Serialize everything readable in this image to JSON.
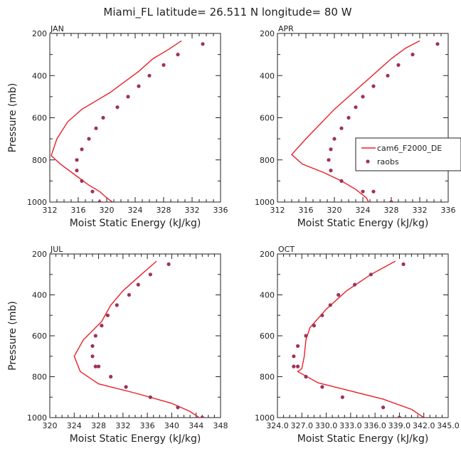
{
  "title": "Miami_FL  latitude= 26.511 N longitude= 80 W",
  "colors": {
    "model": "#e8202a",
    "obs": "#a0325a",
    "axis": "#222222"
  },
  "legend": {
    "model_label": "cam6_F2000_DE",
    "obs_label": "raobs"
  },
  "chart_data": [
    {
      "type": "line",
      "panel": "JAN",
      "xlabel": "Moist Static Energy (kJ/kg)",
      "ylabel": "Pressure (mb)",
      "xlim": [
        312,
        336
      ],
      "ylim": [
        1000,
        200
      ],
      "xticks": [
        "312",
        "316",
        "320",
        "324",
        "328",
        "332",
        "336"
      ],
      "yticks": [
        "200",
        "400",
        "600",
        "800",
        "1000"
      ],
      "series": [
        {
          "name": "cam6_F2000_DE",
          "kind": "line",
          "x": [
            330.5,
            328.5,
            326.5,
            324.5,
            322.5,
            320.5,
            318.5,
            316.5,
            314.5,
            313.0,
            312.2,
            313.5,
            315.5,
            317.5,
            319.0,
            320.0,
            320.8
          ],
          "y": [
            235,
            280,
            320,
            380,
            430,
            480,
            520,
            560,
            620,
            700,
            780,
            820,
            870,
            920,
            950,
            980,
            1000
          ]
        },
        {
          "name": "raobs",
          "kind": "scatter",
          "x": [
            333.5,
            330.0,
            328.0,
            326.0,
            324.5,
            323.0,
            321.5,
            319.5,
            318.5,
            317.5,
            316.5,
            315.8,
            315.8,
            316.5,
            318.0,
            319.0
          ],
          "y": [
            250,
            300,
            350,
            400,
            450,
            500,
            550,
            600,
            650,
            700,
            750,
            800,
            850,
            900,
            950,
            1000
          ]
        }
      ]
    },
    {
      "type": "line",
      "panel": "APR",
      "xlabel": "Moist Static Energy (kJ/kg)",
      "ylabel": "",
      "xlim": [
        312,
        336
      ],
      "ylim": [
        1000,
        200
      ],
      "xticks": [
        "312",
        "316",
        "320",
        "324",
        "328",
        "332",
        "336"
      ],
      "yticks": [
        "200",
        "400",
        "600",
        "800",
        "1000"
      ],
      "series": [
        {
          "name": "cam6_F2000_DE",
          "kind": "line",
          "x": [
            332.0,
            330.0,
            328.0,
            326.0,
            324.0,
            322.0,
            320.0,
            318.0,
            316.0,
            314.0,
            315.5,
            318.5,
            321.0,
            323.0,
            324.5,
            324.8
          ],
          "y": [
            235,
            270,
            320,
            380,
            440,
            500,
            560,
            630,
            700,
            775,
            820,
            860,
            900,
            940,
            980,
            1000
          ]
        },
        {
          "name": "raobs",
          "kind": "scatter",
          "x": [
            334.5,
            331.0,
            329.0,
            327.5,
            325.5,
            324.0,
            323.0,
            322.0,
            321.0,
            320.0,
            319.5,
            319.2,
            319.5,
            321.0,
            324.0,
            325.5,
            328.0
          ],
          "y": [
            250,
            300,
            350,
            400,
            450,
            500,
            550,
            600,
            650,
            700,
            750,
            800,
            850,
            900,
            950,
            950,
            1000
          ]
        }
      ]
    },
    {
      "type": "line",
      "panel": "JUL",
      "xlabel": "Moist Static Energy (kJ/kg)",
      "ylabel": "Pressure (mb)",
      "xlim": [
        320,
        348
      ],
      "ylim": [
        1000,
        200
      ],
      "xticks": [
        "320",
        "324",
        "328",
        "332",
        "336",
        "340",
        "344",
        "348"
      ],
      "yticks": [
        "200",
        "400",
        "600",
        "800",
        "1000"
      ],
      "series": [
        {
          "name": "cam6_F2000_DE",
          "kind": "line",
          "x": [
            337.5,
            335.0,
            332.0,
            330.0,
            328.5,
            327.5,
            325.5,
            324.0,
            325.0,
            328.0,
            334.0,
            340.0,
            343.0,
            344.5
          ],
          "y": [
            235,
            300,
            380,
            450,
            530,
            560,
            620,
            700,
            775,
            835,
            880,
            930,
            970,
            1000
          ]
        },
        {
          "name": "raobs",
          "kind": "scatter",
          "x": [
            339.5,
            336.5,
            334.5,
            333.0,
            331.0,
            329.5,
            328.5,
            327.5,
            327.0,
            327.0,
            327.5,
            328.0,
            330.0,
            332.5,
            336.5,
            341.0,
            345.0
          ],
          "y": [
            250,
            300,
            350,
            400,
            450,
            500,
            550,
            600,
            650,
            700,
            750,
            750,
            800,
            850,
            900,
            950,
            1000
          ]
        }
      ]
    },
    {
      "type": "line",
      "panel": "OCT",
      "xlabel": "Moist Static Energy (kJ/kg)",
      "ylabel": "",
      "xlim": [
        324.0,
        345.0
      ],
      "ylim": [
        1000,
        200
      ],
      "xticks": [
        "324.0",
        "327.0",
        "330.0",
        "333.0",
        "336.0",
        "339.0",
        "342.0",
        "345.0"
      ],
      "yticks": [
        "200",
        "400",
        "600",
        "800",
        "1000"
      ],
      "series": [
        {
          "name": "cam6_F2000_DE",
          "kind": "line",
          "x": [
            338.5,
            335.5,
            332.5,
            330.0,
            328.0,
            327.5,
            327.3,
            327.0,
            326.5,
            329.0,
            333.0,
            337.0,
            340.5,
            342.0
          ],
          "y": [
            235,
            300,
            380,
            470,
            560,
            620,
            700,
            760,
            775,
            830,
            870,
            910,
            960,
            1000
          ]
        },
        {
          "name": "raobs",
          "kind": "scatter",
          "x": [
            339.5,
            335.5,
            333.5,
            331.5,
            330.5,
            329.5,
            328.5,
            327.5,
            326.5,
            326.0,
            326.0,
            326.5,
            327.5,
            329.5,
            332.0,
            337.0,
            339.0
          ],
          "y": [
            250,
            300,
            350,
            400,
            450,
            500,
            550,
            600,
            650,
            700,
            750,
            750,
            800,
            850,
            900,
            950,
            1000
          ]
        }
      ]
    }
  ]
}
